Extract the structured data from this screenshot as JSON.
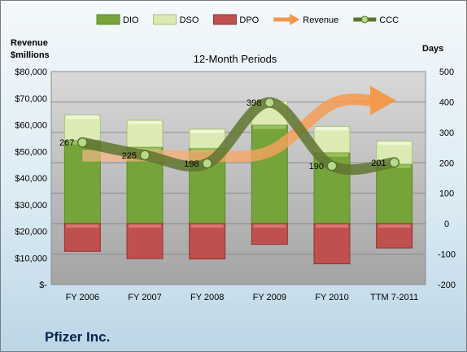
{
  "company": "Pfizer Inc.",
  "chart_data": {
    "type": "bar",
    "title": "12-Month Periods",
    "categories": [
      "FY 2006",
      "FY 2007",
      "FY 2008",
      "FY 2009",
      "FY 2010",
      "TTM 7-2011"
    ],
    "left_axis": {
      "label": [
        "Revenue",
        "$millions"
      ],
      "ylim": [
        0,
        80000
      ],
      "ticks": [
        "$-",
        "$10,000",
        "$20,000",
        "$30,000",
        "$40,000",
        "$50,000",
        "$60,000",
        "$70,000",
        "$80,000"
      ]
    },
    "right_axis": {
      "label": "Days",
      "ylim": [
        -200,
        500
      ],
      "ticks": [
        -200,
        -100,
        0,
        100,
        200,
        300,
        400,
        500
      ]
    },
    "legend_position": "top",
    "series": [
      {
        "name": "DIO",
        "axis": "right",
        "color": "#77a33b",
        "values": [
          274,
          252,
          248,
          325,
          234,
          196
        ]
      },
      {
        "name": "DSO",
        "axis": "right",
        "color": "#dcebb4",
        "values": [
          84,
          88,
          63,
          77,
          86,
          76
        ]
      },
      {
        "name": "DPO",
        "axis": "right",
        "color": "#c0504d",
        "values": [
          -91,
          -115,
          -116,
          -68,
          -132,
          -80
        ]
      },
      {
        "name": "Revenue",
        "axis": "left",
        "color": "#f79646",
        "values": [
          48371,
          48418,
          48296,
          50009,
          67809,
          69113
        ]
      },
      {
        "name": "CCC",
        "axis": "right",
        "color": "#5f7530",
        "values": [
          267,
          225,
          198,
          398,
          190,
          201
        ],
        "labels": [
          "267",
          "225",
          "198",
          "398",
          "190",
          "201"
        ]
      }
    ]
  }
}
